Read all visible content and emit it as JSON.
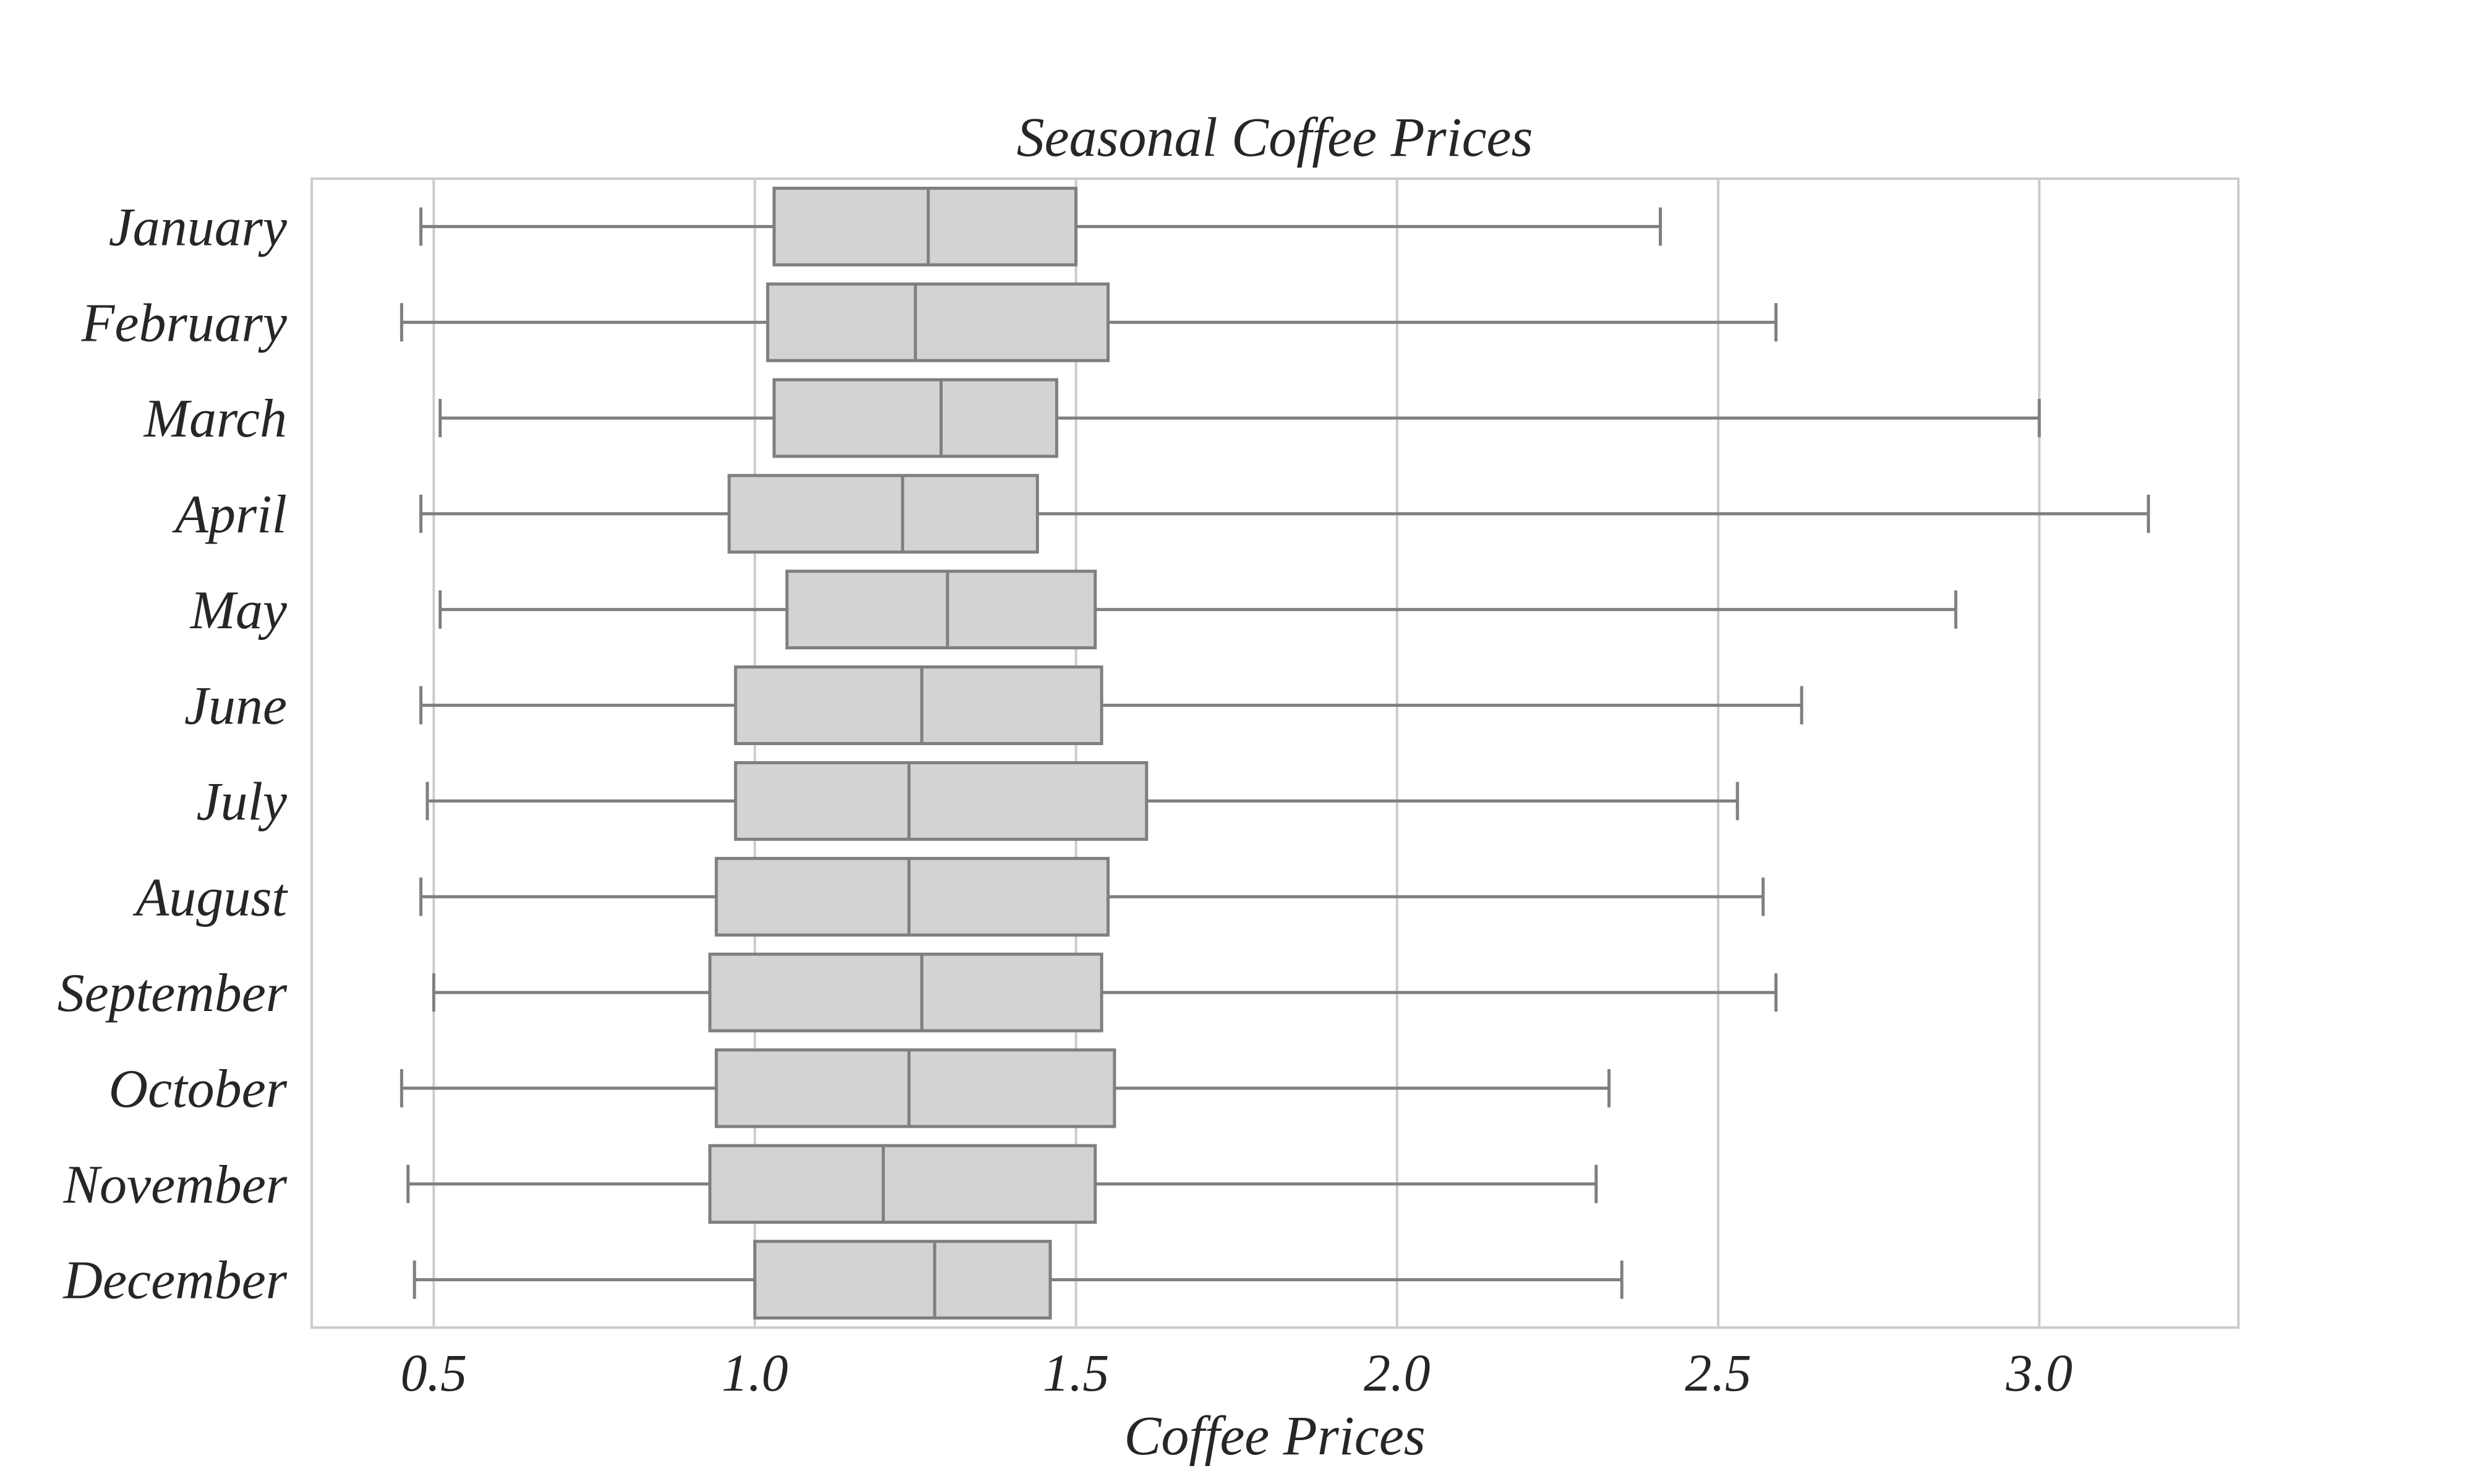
{
  "chart_data": {
    "type": "box",
    "orientation": "horizontal",
    "title": "Seasonal Coffee Prices",
    "xlabel": "Coffee Prices",
    "ylabel": "",
    "xlim": [
      0.31,
      3.31
    ],
    "xticks": [
      0.5,
      1.0,
      1.5,
      2.0,
      2.5,
      3.0
    ],
    "xtick_labels": [
      "0.5",
      "1.0",
      "1.5",
      "2.0",
      "2.5",
      "3.0"
    ],
    "grid": "vertical",
    "colors": {
      "box_fill": "#d3d3d3",
      "box_stroke": "#7f7f7f",
      "grid": "#cccccc",
      "frame": "#cccccc"
    },
    "categories": [
      "January",
      "February",
      "March",
      "April",
      "May",
      "June",
      "July",
      "August",
      "September",
      "October",
      "November",
      "December"
    ],
    "boxes": [
      {
        "whislo": 0.48,
        "q1": 1.03,
        "med": 1.27,
        "q3": 1.5,
        "whishi": 2.41
      },
      {
        "whislo": 0.45,
        "q1": 1.02,
        "med": 1.25,
        "q3": 1.55,
        "whishi": 2.59
      },
      {
        "whislo": 0.51,
        "q1": 1.03,
        "med": 1.29,
        "q3": 1.47,
        "whishi": 3.0
      },
      {
        "whislo": 0.48,
        "q1": 0.96,
        "med": 1.23,
        "q3": 1.44,
        "whishi": 3.17
      },
      {
        "whislo": 0.51,
        "q1": 1.05,
        "med": 1.3,
        "q3": 1.53,
        "whishi": 2.87
      },
      {
        "whislo": 0.48,
        "q1": 0.97,
        "med": 1.26,
        "q3": 1.54,
        "whishi": 2.63
      },
      {
        "whislo": 0.49,
        "q1": 0.97,
        "med": 1.24,
        "q3": 1.61,
        "whishi": 2.53
      },
      {
        "whislo": 0.48,
        "q1": 0.94,
        "med": 1.24,
        "q3": 1.55,
        "whishi": 2.57
      },
      {
        "whislo": 0.5,
        "q1": 0.93,
        "med": 1.26,
        "q3": 1.54,
        "whishi": 2.59
      },
      {
        "whislo": 0.45,
        "q1": 0.94,
        "med": 1.24,
        "q3": 1.56,
        "whishi": 2.33
      },
      {
        "whislo": 0.46,
        "q1": 0.93,
        "med": 1.2,
        "q3": 1.53,
        "whishi": 2.31
      },
      {
        "whislo": 0.47,
        "q1": 1.0,
        "med": 1.28,
        "q3": 1.46,
        "whishi": 2.35
      }
    ]
  }
}
